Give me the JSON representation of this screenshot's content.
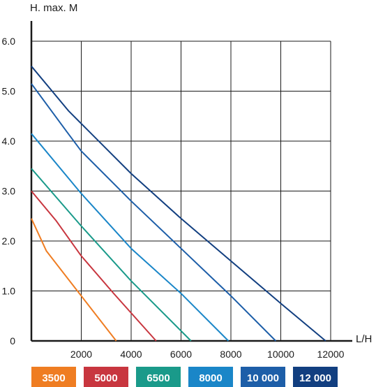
{
  "chart_data": {
    "type": "line",
    "title": "",
    "xlabel": "L/H",
    "ylabel": "H. max. M",
    "xlim": [
      0,
      12000
    ],
    "ylim": [
      0,
      6.0
    ],
    "x_ticks": [
      2000,
      4000,
      6000,
      8000,
      10000,
      12000
    ],
    "x_tick_labels": [
      "2000",
      "4000",
      "6000",
      "8000",
      "10000",
      "12000"
    ],
    "y_ticks": [
      0,
      1.0,
      2.0,
      3.0,
      4.0,
      5.0,
      6.0
    ],
    "y_tick_labels": [
      "0",
      "1.0",
      "2.0",
      "3.0",
      "4.0",
      "5.0",
      "6.0"
    ],
    "grid": true,
    "legend_position": "bottom",
    "series": [
      {
        "name": "3500",
        "color": "#ef7d22",
        "points": [
          [
            0,
            2.45
          ],
          [
            600,
            1.8
          ],
          [
            2000,
            0.9
          ],
          [
            3400,
            0
          ]
        ]
      },
      {
        "name": "5000",
        "color": "#c8363f",
        "points": [
          [
            0,
            3.0
          ],
          [
            1000,
            2.4
          ],
          [
            2000,
            1.7
          ],
          [
            3300,
            0.95
          ],
          [
            5000,
            0
          ]
        ]
      },
      {
        "name": "6500",
        "color": "#1a9a8a",
        "points": [
          [
            0,
            3.45
          ],
          [
            2000,
            2.3
          ],
          [
            4000,
            1.2
          ],
          [
            6400,
            0
          ]
        ]
      },
      {
        "name": "8000",
        "color": "#1a86c8",
        "points": [
          [
            0,
            4.15
          ],
          [
            2000,
            2.95
          ],
          [
            4000,
            1.85
          ],
          [
            6000,
            0.95
          ],
          [
            7900,
            0
          ]
        ]
      },
      {
        "name": "10 000",
        "color": "#1d5ea8",
        "points": [
          [
            0,
            5.15
          ],
          [
            1400,
            4.2
          ],
          [
            2000,
            3.8
          ],
          [
            4000,
            2.8
          ],
          [
            6000,
            1.85
          ],
          [
            8000,
            0.9
          ],
          [
            9800,
            0
          ]
        ]
      },
      {
        "name": "12 000",
        "color": "#123f80",
        "points": [
          [
            0,
            5.5
          ],
          [
            1500,
            4.6
          ],
          [
            2000,
            4.35
          ],
          [
            4000,
            3.35
          ],
          [
            6000,
            2.45
          ],
          [
            8000,
            1.6
          ],
          [
            10000,
            0.75
          ],
          [
            11800,
            0
          ]
        ]
      }
    ]
  }
}
